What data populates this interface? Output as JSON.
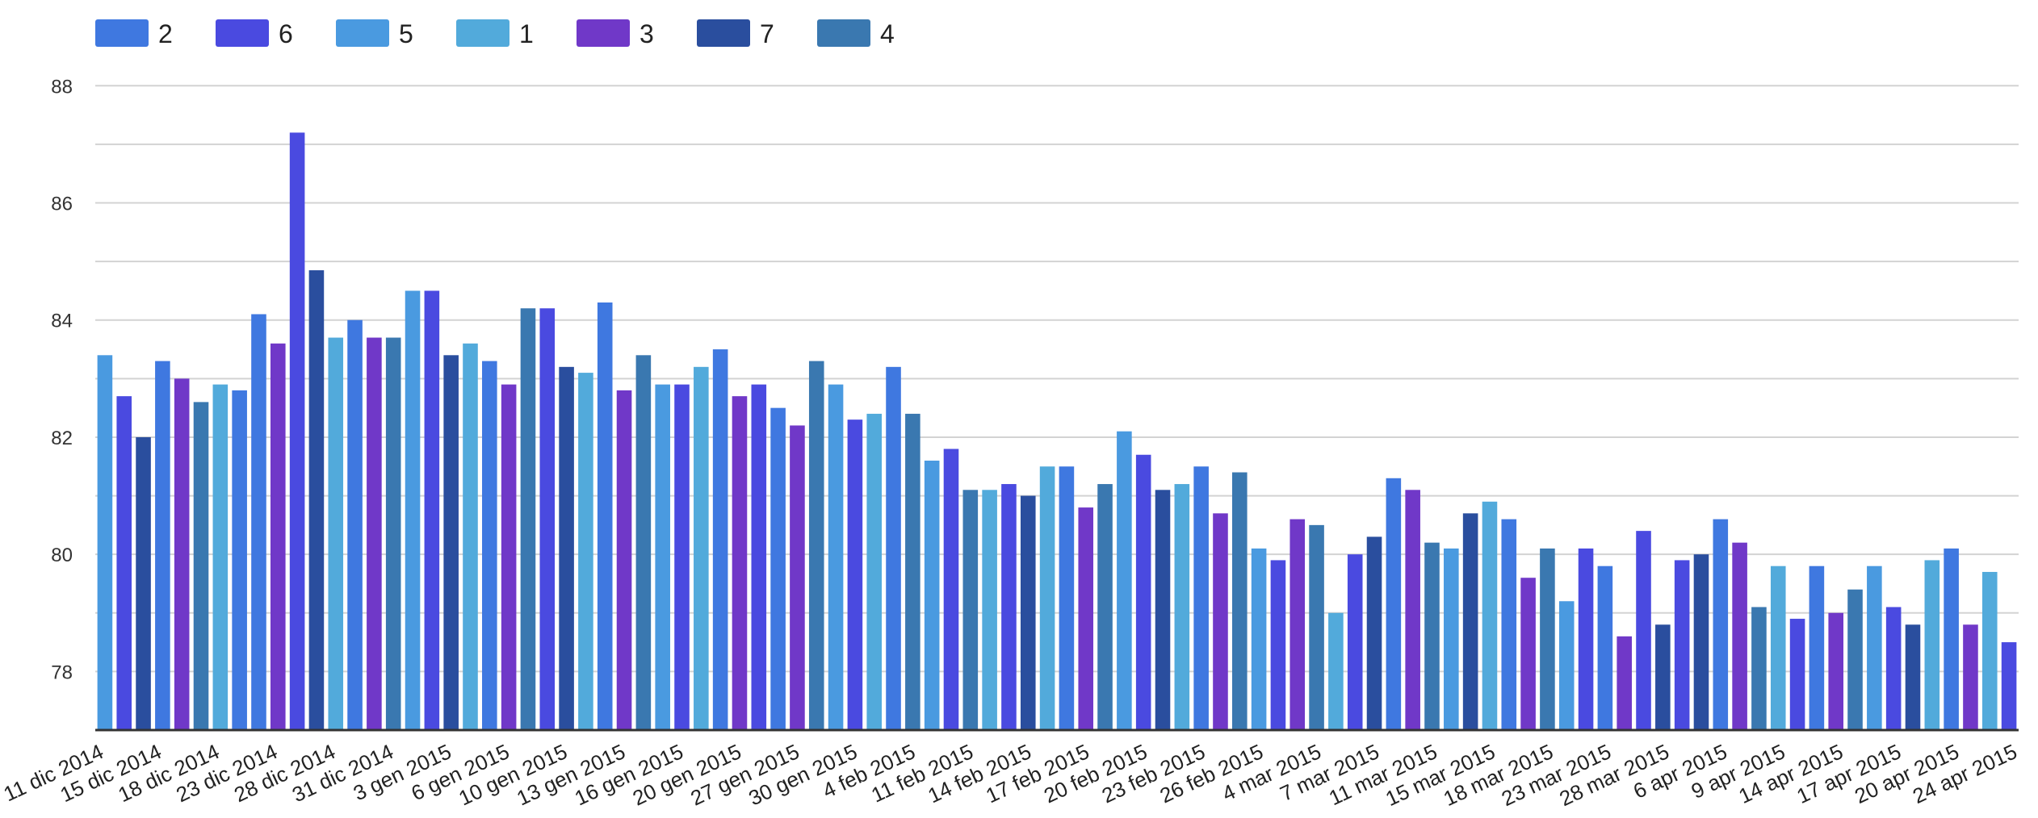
{
  "chart_data": {
    "type": "bar",
    "title": "",
    "xlabel": "",
    "ylabel": "",
    "ylim": [
      77,
      88.5
    ],
    "y_ticks": [
      78,
      80,
      82,
      84,
      86,
      88
    ],
    "grid": true,
    "legend_position": "top-left",
    "legend": [
      {
        "name": "2",
        "color": "#3f78e0"
      },
      {
        "name": "6",
        "color": "#4a4ae0"
      },
      {
        "name": "5",
        "color": "#4a9ae0"
      },
      {
        "name": "1",
        "color": "#52aadb"
      },
      {
        "name": "3",
        "color": "#7038c8"
      },
      {
        "name": "7",
        "color": "#2a4e9e"
      },
      {
        "name": "4",
        "color": "#3a78b0"
      }
    ],
    "tick_labels": [
      "11 dic 2014",
      "15 dic 2014",
      "18 dic 2014",
      "23 dic 2014",
      "28 dic 2014",
      "31 dic 2014",
      "3 gen 2015",
      "6 gen 2015",
      "10 gen 2015",
      "13 gen 2015",
      "16 gen 2015",
      "20 gen 2015",
      "27 gen 2015",
      "30 gen 2015",
      "4 feb 2015",
      "11 feb 2015",
      "14 feb 2015",
      "17 feb 2015",
      "20 feb 2015",
      "23 feb 2015",
      "26 feb 2015",
      "4 mar 2015",
      "7 mar 2015",
      "11 mar 2015",
      "15 mar 2015",
      "18 mar 2015",
      "23 mar 2015",
      "28 mar 2015",
      "6 apr 2015",
      "9 apr 2015",
      "14 apr 2015",
      "17 apr 2015",
      "20 apr 2015",
      "24 apr 2015"
    ],
    "bars": [
      {
        "series": "5",
        "value": 83.4
      },
      {
        "series": "6",
        "value": 82.7
      },
      {
        "series": "7",
        "value": 82.0
      },
      {
        "series": "2",
        "value": 83.3
      },
      {
        "series": "3",
        "value": 83.0
      },
      {
        "series": "4",
        "value": 82.6
      },
      {
        "series": "1",
        "value": 82.9
      },
      {
        "series": "2",
        "value": 82.8
      },
      {
        "series": "2",
        "value": 84.1
      },
      {
        "series": "3",
        "value": 83.6
      },
      {
        "series": "6",
        "value": 87.2
      },
      {
        "series": "7",
        "value": 84.85
      },
      {
        "series": "1",
        "value": 83.7
      },
      {
        "series": "2",
        "value": 84.0
      },
      {
        "series": "3",
        "value": 83.7
      },
      {
        "series": "4",
        "value": 83.7
      },
      {
        "series": "5",
        "value": 84.5
      },
      {
        "series": "6",
        "value": 84.5
      },
      {
        "series": "7",
        "value": 83.4
      },
      {
        "series": "1",
        "value": 83.6
      },
      {
        "series": "2",
        "value": 83.3
      },
      {
        "series": "3",
        "value": 82.9
      },
      {
        "series": "4",
        "value": 84.2
      },
      {
        "series": "6",
        "value": 84.2
      },
      {
        "series": "7",
        "value": 83.2
      },
      {
        "series": "1",
        "value": 83.1
      },
      {
        "series": "2",
        "value": 84.3
      },
      {
        "series": "3",
        "value": 82.8
      },
      {
        "series": "4",
        "value": 83.4
      },
      {
        "series": "5",
        "value": 82.9
      },
      {
        "series": "6",
        "value": 82.9
      },
      {
        "series": "1",
        "value": 83.2
      },
      {
        "series": "2",
        "value": 83.5
      },
      {
        "series": "3",
        "value": 82.7
      },
      {
        "series": "6",
        "value": 82.9
      },
      {
        "series": "2",
        "value": 82.5
      },
      {
        "series": "3",
        "value": 82.2
      },
      {
        "series": "4",
        "value": 83.3
      },
      {
        "series": "5",
        "value": 82.9
      },
      {
        "series": "6",
        "value": 82.3
      },
      {
        "series": "1",
        "value": 82.4
      },
      {
        "series": "2",
        "value": 83.2
      },
      {
        "series": "4",
        "value": 82.4
      },
      {
        "series": "5",
        "value": 81.6
      },
      {
        "series": "6",
        "value": 81.8
      },
      {
        "series": "4",
        "value": 81.1
      },
      {
        "series": "1",
        "value": 81.1
      },
      {
        "series": "6",
        "value": 81.2
      },
      {
        "series": "7",
        "value": 81.0
      },
      {
        "series": "1",
        "value": 81.5
      },
      {
        "series": "2",
        "value": 81.5
      },
      {
        "series": "3",
        "value": 80.8
      },
      {
        "series": "4",
        "value": 81.2
      },
      {
        "series": "5",
        "value": 82.1
      },
      {
        "series": "6",
        "value": 81.7
      },
      {
        "series": "7",
        "value": 81.1
      },
      {
        "series": "1",
        "value": 81.2
      },
      {
        "series": "2",
        "value": 81.5
      },
      {
        "series": "3",
        "value": 80.7
      },
      {
        "series": "4",
        "value": 81.4
      },
      {
        "series": "5",
        "value": 80.1
      },
      {
        "series": "6",
        "value": 79.9
      },
      {
        "series": "3",
        "value": 80.6
      },
      {
        "series": "4",
        "value": 80.5
      },
      {
        "series": "1",
        "value": 79.0
      },
      {
        "series": "6",
        "value": 80.0
      },
      {
        "series": "7",
        "value": 80.3
      },
      {
        "series": "2",
        "value": 81.3
      },
      {
        "series": "3",
        "value": 81.1
      },
      {
        "series": "4",
        "value": 80.2
      },
      {
        "series": "5",
        "value": 80.1
      },
      {
        "series": "7",
        "value": 80.7
      },
      {
        "series": "1",
        "value": 80.9
      },
      {
        "series": "2",
        "value": 80.6
      },
      {
        "series": "3",
        "value": 79.6
      },
      {
        "series": "4",
        "value": 80.1
      },
      {
        "series": "5",
        "value": 79.2
      },
      {
        "series": "6",
        "value": 80.1
      },
      {
        "series": "2",
        "value": 79.8
      },
      {
        "series": "3",
        "value": 78.6
      },
      {
        "series": "6",
        "value": 80.4
      },
      {
        "series": "7",
        "value": 78.8
      },
      {
        "series": "6",
        "value": 79.9
      },
      {
        "series": "7",
        "value": 80.0
      },
      {
        "series": "2",
        "value": 80.6
      },
      {
        "series": "3",
        "value": 80.2
      },
      {
        "series": "4",
        "value": 79.1
      },
      {
        "series": "1",
        "value": 79.8
      },
      {
        "series": "6",
        "value": 78.9
      },
      {
        "series": "2",
        "value": 79.8
      },
      {
        "series": "3",
        "value": 79.0
      },
      {
        "series": "4",
        "value": 79.4
      },
      {
        "series": "5",
        "value": 79.8
      },
      {
        "series": "6",
        "value": 79.1
      },
      {
        "series": "7",
        "value": 78.8
      },
      {
        "series": "1",
        "value": 79.9
      },
      {
        "series": "2",
        "value": 80.1
      },
      {
        "series": "3",
        "value": 78.8
      },
      {
        "series": "1",
        "value": 79.7
      },
      {
        "series": "6",
        "value": 78.5
      }
    ]
  }
}
